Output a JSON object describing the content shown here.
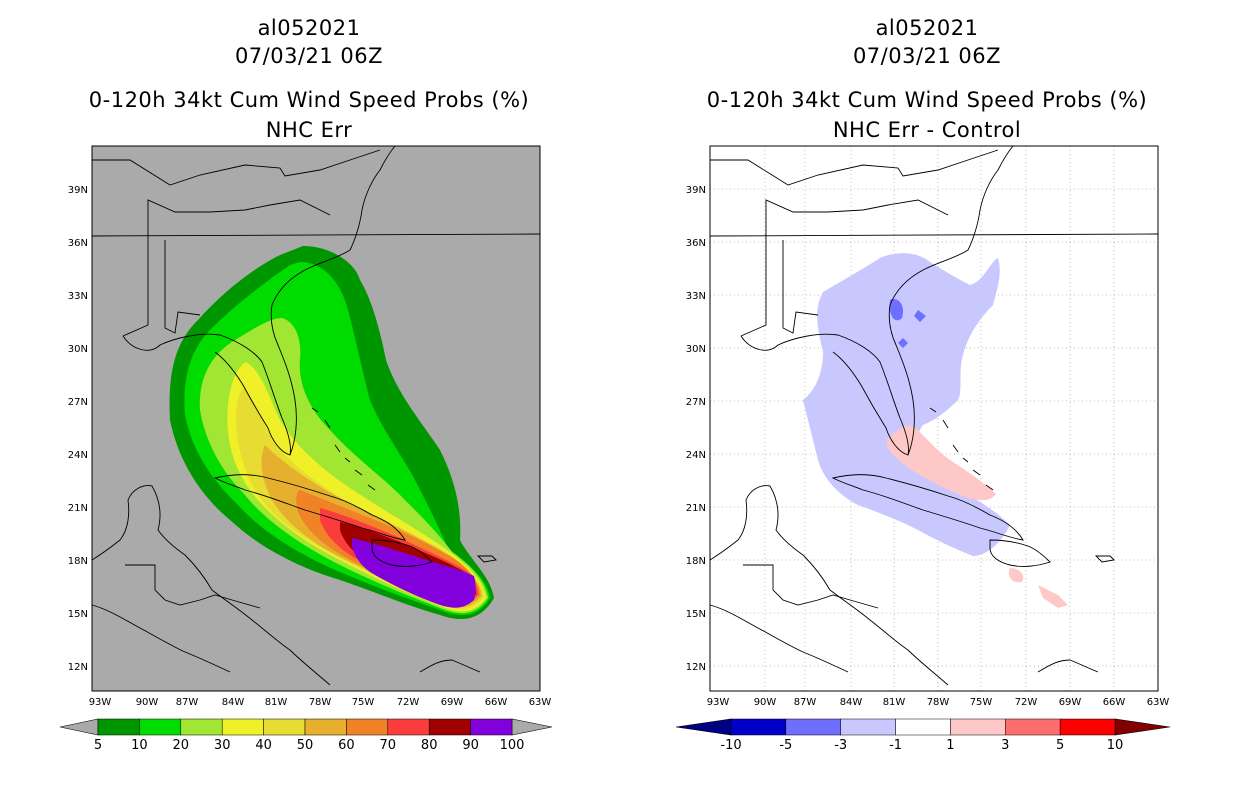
{
  "panels": [
    {
      "storm_id": "al052021",
      "date": "07/03/21 06Z",
      "title": "0-120h 34kt Cum Wind Speed Probs (%)",
      "subtitle": "NHC Err",
      "colorbar": {
        "labels": [
          "5",
          "10",
          "20",
          "30",
          "40",
          "50",
          "60",
          "70",
          "80",
          "90",
          "100"
        ],
        "colors": [
          "#009600",
          "#00dc00",
          "#a0e632",
          "#f0f028",
          "#e6dc32",
          "#e6af2d",
          "#f08228",
          "#fa3c3c",
          "#a00000",
          "#8200dc"
        ]
      }
    },
    {
      "storm_id": "al052021",
      "date": "07/03/21 06Z",
      "title": "0-120h 34kt Cum Wind Speed Probs (%)",
      "subtitle": "NHC Err - Control",
      "colorbar": {
        "labels": [
          "-10",
          "-5",
          "-3",
          "-1",
          "1",
          "3",
          "5",
          "10"
        ],
        "colors": [
          "#0000c8",
          "#6e6eff",
          "#c8c8ff",
          "#ffffff",
          "#ffc8c8",
          "#ff6e6e",
          "#ff0000"
        ]
      }
    }
  ],
  "axes": {
    "lat_labels": [
      "39N",
      "36N",
      "33N",
      "30N",
      "27N",
      "24N",
      "21N",
      "18N",
      "15N",
      "12N"
    ],
    "lon_labels": [
      "93W",
      "90W",
      "87W",
      "84W",
      "81W",
      "78W",
      "75W",
      "72W",
      "69W",
      "66W",
      "63W"
    ]
  },
  "colors": {
    "land_background_left": "#aaaaaa",
    "background_right": "#ffffff",
    "outline": "#000000"
  }
}
